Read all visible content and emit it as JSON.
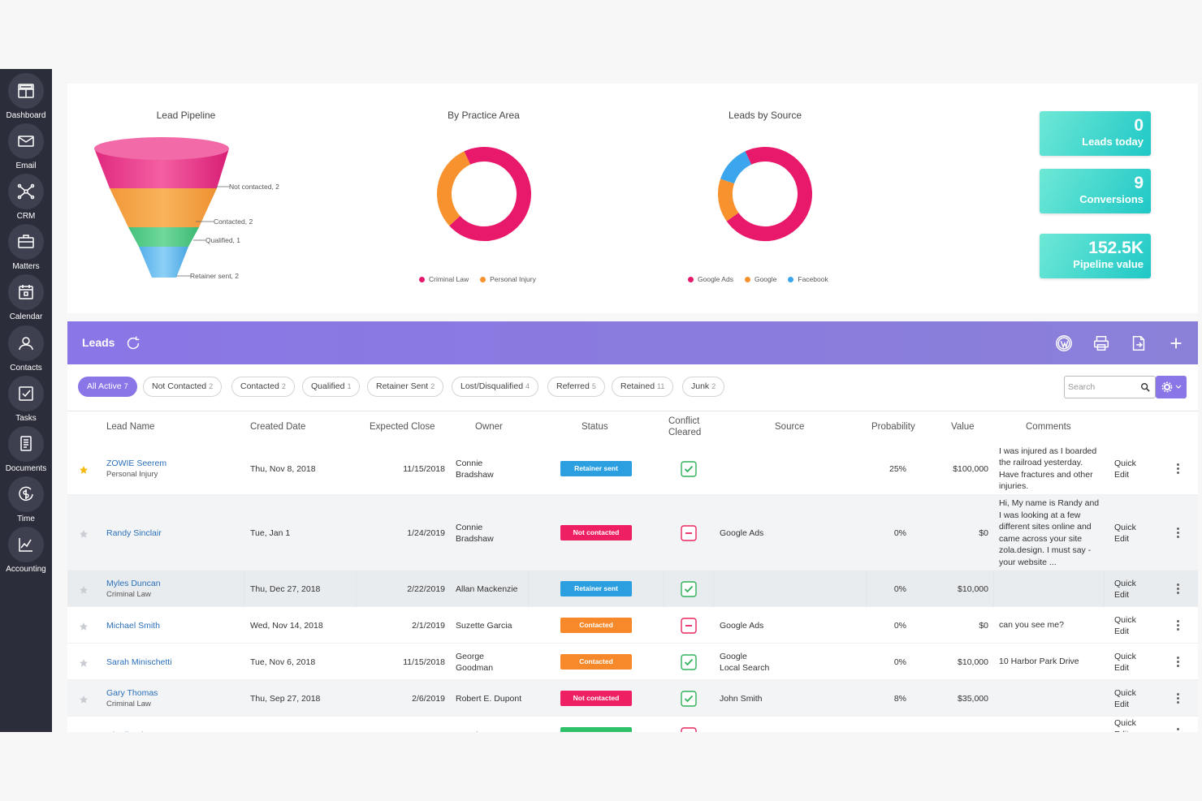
{
  "sidebar": {
    "items": [
      {
        "label": "Dashboard",
        "icon": "dashboard-icon"
      },
      {
        "label": "Email",
        "icon": "envelope-icon"
      },
      {
        "label": "CRM",
        "icon": "network-icon"
      },
      {
        "label": "Matters",
        "icon": "briefcase-icon"
      },
      {
        "label": "Calendar",
        "icon": "calendar-icon"
      },
      {
        "label": "Contacts",
        "icon": "contacts-icon"
      },
      {
        "label": "Tasks",
        "icon": "tasks-icon"
      },
      {
        "label": "Documents",
        "icon": "documents-icon"
      },
      {
        "label": "Time",
        "icon": "time-money-icon"
      },
      {
        "label": "Accounting",
        "icon": "chart-icon"
      }
    ]
  },
  "pipeline": {
    "title": "Lead Pipeline",
    "stages": [
      {
        "label": "Not contacted, 2",
        "color": "#ee2f8a"
      },
      {
        "label": "Contacted, 2",
        "color": "#f5a13a"
      },
      {
        "label": "Qualified, 1",
        "color": "#4fc885"
      },
      {
        "label": "Retainer sent, 2",
        "color": "#61b9ee"
      }
    ]
  },
  "practice": {
    "title": "By Practice Area",
    "legend": [
      {
        "label": "Criminal Law",
        "color": "#e8186a"
      },
      {
        "label": "Personal Injury",
        "color": "#f7922e"
      }
    ]
  },
  "source": {
    "title": "Leads by Source",
    "legend": [
      {
        "label": "Google Ads",
        "color": "#e8186a"
      },
      {
        "label": "Google",
        "color": "#f7922e"
      },
      {
        "label": "Facebook",
        "color": "#3ba6ee"
      }
    ]
  },
  "chart_data": [
    {
      "type": "pie",
      "title": "By Practice Area",
      "labels": [
        "Criminal Law",
        "Personal Injury"
      ],
      "values": [
        0.7,
        0.3
      ],
      "colors": [
        "#e8186a",
        "#f7922e"
      ]
    },
    {
      "type": "pie",
      "title": "Leads by Source",
      "labels": [
        "Google Ads",
        "Google",
        "Facebook"
      ],
      "values": [
        0.72,
        0.15,
        0.13
      ],
      "colors": [
        "#e8186a",
        "#f7922e",
        "#3ba6ee"
      ]
    }
  ],
  "kpis": [
    {
      "value": "0",
      "label": "Leads today"
    },
    {
      "value": "9",
      "label": "Conversions"
    },
    {
      "value": "152.5K",
      "label": "Pipeline value"
    }
  ],
  "leads": {
    "title": "Leads",
    "filters": [
      {
        "label": "All Active",
        "count": "7",
        "active": true
      },
      {
        "label": "Not Contacted",
        "count": "2"
      },
      {
        "label": "Contacted",
        "count": "2"
      },
      {
        "label": "Qualified",
        "count": "1"
      },
      {
        "label": "Retainer Sent",
        "count": "2"
      },
      {
        "label": "Lost/Disqualified",
        "count": "4"
      },
      {
        "label": "Referred",
        "count": "5"
      },
      {
        "label": "Retained",
        "count": "11"
      },
      {
        "label": "Junk",
        "count": "2"
      }
    ],
    "search_placeholder": "Search",
    "columns": [
      "Lead Name",
      "Created Date",
      "Expected Close",
      "Owner",
      "Status",
      "Conflict\nCleared",
      "Source",
      "Probability",
      "Value",
      "Comments"
    ],
    "quick_edit": "Quick\nEdit",
    "rows": [
      {
        "starred": true,
        "name": "ZOWIE Seerem",
        "area": "Personal Injury",
        "created": "Thu, Nov 8, 2018",
        "close": "11/15/2018",
        "owner": "Connie\nBradshaw",
        "status": "Retainer sent",
        "status_color": "#2c9fe0",
        "cleared": true,
        "source": "",
        "prob": "25%",
        "value": "$100,000",
        "comment": "I was injured as I boarded the railroad yesterday. Have fractures and other injuries."
      },
      {
        "starred": false,
        "name": "Randy Sinclair",
        "area": "",
        "created": "Tue, Jan 1",
        "close": "1/24/2019",
        "owner": "Connie\nBradshaw",
        "status": "Not contacted",
        "status_color": "#ee1f63",
        "cleared": false,
        "source": "Google Ads",
        "prob": "0%",
        "value": "$0",
        "comment": "Hi, My name is Randy and I was looking at a few different sites online and came across your site zola.design. I must say - your website ..."
      },
      {
        "starred": false,
        "name": "Myles Duncan",
        "area": "Criminal Law",
        "created": "Thu, Dec 27, 2018",
        "close": "2/22/2019",
        "owner": "Allan Mackenzie",
        "status": "Retainer sent",
        "status_color": "#2c9fe0",
        "cleared": true,
        "source": "",
        "prob": "0%",
        "value": "$10,000",
        "comment": ""
      },
      {
        "starred": false,
        "name": "Michael Smith",
        "area": "",
        "created": "Wed, Nov 14, 2018",
        "close": "2/1/2019",
        "owner": "Suzette Garcia",
        "status": "Contacted",
        "status_color": "#f7892b",
        "cleared": false,
        "source": "Google Ads",
        "prob": "0%",
        "value": "$0",
        "comment": "can you see me?"
      },
      {
        "starred": false,
        "name": "Sarah Minischetti",
        "area": "",
        "created": "Tue, Nov 6, 2018",
        "close": "11/15/2018",
        "owner": "George\nGoodman",
        "status": "Contacted",
        "status_color": "#f7892b",
        "cleared": true,
        "source": "Google\nLocal Search",
        "prob": "0%",
        "value": "$10,000",
        "comment": "10 Harbor Park Drive"
      },
      {
        "starred": false,
        "name": "Gary Thomas",
        "area": "Criminal Law",
        "created": "Thu, Sep 27, 2018",
        "close": "2/6/2019",
        "owner": "Robert E. Dupont",
        "status": "Not contacted",
        "status_color": "#ee1f63",
        "cleared": true,
        "source": "John Smith",
        "prob": "8%",
        "value": "$35,000",
        "comment": ""
      },
      {
        "starred": false,
        "name": "Charlie Bloom",
        "area": "",
        "created": "",
        "close": "",
        "owner": "Connie",
        "status": "",
        "status_color": "#2fc06a",
        "cleared": false,
        "source": "",
        "prob": "",
        "value": "",
        "comment": ""
      }
    ]
  }
}
